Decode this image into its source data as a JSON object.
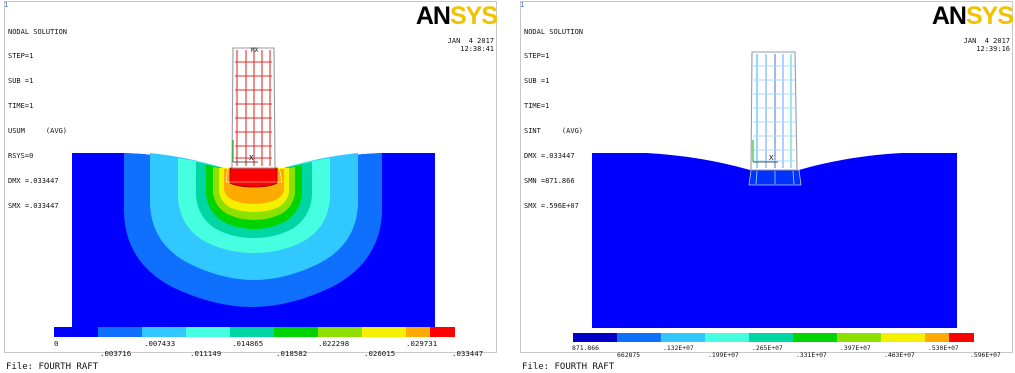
{
  "panels": [
    {
      "window_number": "1",
      "header": {
        "title": "NODAL SOLUTION",
        "lines": [
          "STEP=1",
          "SUB =1",
          "TIME=1",
          "USUM     (AVG)",
          "RSYS=0",
          "DMX =.033447",
          "SMX =.033447"
        ]
      },
      "brand": {
        "an": "AN",
        "sys": "SYS"
      },
      "date": "JAN  4 2017",
      "time": "12:38:41",
      "mx_label": "MX",
      "axis_marker": "X",
      "legend": {
        "colors": [
          "#0000ff",
          "#0f6fff",
          "#30c8ff",
          "#46ffe0",
          "#00d6a4",
          "#00d400",
          "#8de000",
          "#f5ef00",
          "#ffaa00",
          "#ff0000"
        ],
        "ticks_top": [
          "0",
          ".007433",
          ".014865",
          ".022298",
          ".029731"
        ],
        "ticks_bottom": [
          ".003716",
          ".011149",
          ".018582",
          ".026015",
          ".033447"
        ]
      },
      "file_label": "File: FOURTH RAFT"
    },
    {
      "window_number": "1",
      "header": {
        "title": "NODAL SOLUTION",
        "lines": [
          "STEP=1",
          "SUB =1",
          "TIME=1",
          "SINT     (AVG)",
          "DMX =.033447",
          "SMN =871.866",
          "SMX =.596E+07"
        ]
      },
      "brand": {
        "an": "AN",
        "sys": "SYS"
      },
      "date": "JAN  4 2017",
      "time": "12:39:16",
      "axis_marker": "X",
      "legend": {
        "colors": [
          "#0000c8",
          "#0f6fff",
          "#30c8ff",
          "#46ffe0",
          "#00d6a4",
          "#00d400",
          "#8de000",
          "#f5ef00",
          "#ffaa00",
          "#ff0000"
        ],
        "ticks_top": [
          "871.866",
          ".132E+07",
          ".265E+07",
          ".397E+07",
          ".530E+07"
        ],
        "ticks_bottom": [
          "662875",
          ".199E+07",
          ".331E+07",
          ".463E+07",
          ".596E+07"
        ]
      },
      "file_label": "File: FOURTH RAFT"
    }
  ]
}
